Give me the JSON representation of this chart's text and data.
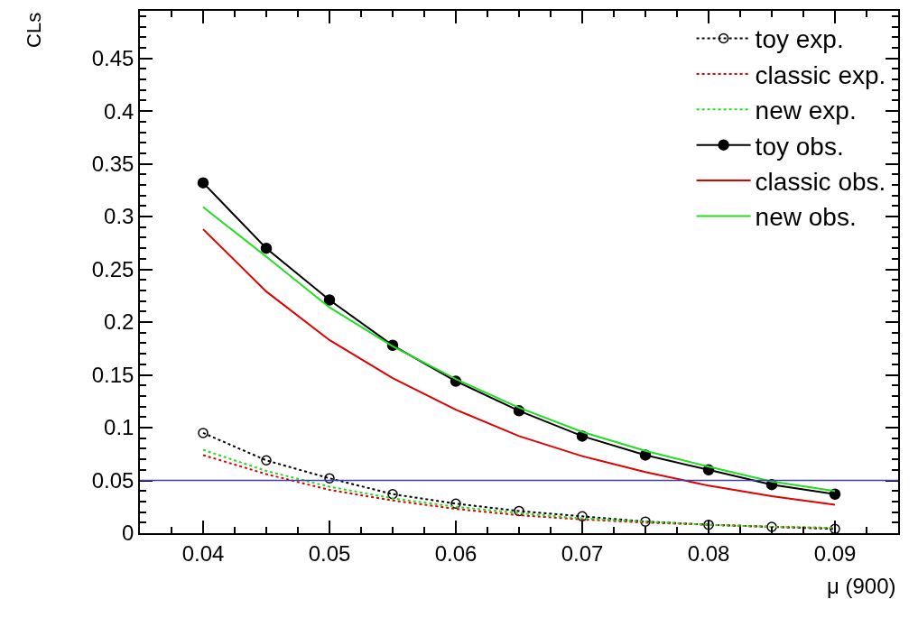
{
  "chart_data": {
    "type": "line",
    "xlabel": "μ (900)",
    "ylabel": "CLs",
    "x": [
      0.04,
      0.045,
      0.05,
      0.055,
      0.06,
      0.065,
      0.07,
      0.075,
      0.08,
      0.085,
      0.09
    ],
    "xlim": [
      0.035,
      0.095
    ],
    "xticks": [
      0.04,
      0.05,
      0.06,
      0.07,
      0.08,
      0.09
    ],
    "ylim": [
      0,
      0.495
    ],
    "yticks": [
      0,
      0.05,
      0.1,
      0.15,
      0.2,
      0.25,
      0.3,
      0.35,
      0.4,
      0.45
    ],
    "legend": "top right",
    "ref_lines": [
      {
        "axis": "y",
        "value": 0.05,
        "color": "#3f3fa6"
      }
    ],
    "series": [
      {
        "name": "toy exp.",
        "color": "#000000",
        "marker": "circle-open",
        "line_style": "dotted",
        "values": [
          0.095,
          0.069,
          0.052,
          0.037,
          0.028,
          0.021,
          0.016,
          0.011,
          0.008,
          0.006,
          0.004
        ]
      },
      {
        "name": "classic exp.",
        "color": "#e00000",
        "marker": "none",
        "line_style": "dotted",
        "values": [
          0.074,
          0.056,
          0.041,
          0.031,
          0.023,
          0.017,
          0.013,
          0.01,
          0.008,
          0.006,
          0.005
        ]
      },
      {
        "name": "new exp.",
        "color": "#22dd22",
        "marker": "none",
        "line_style": "dotted",
        "values": [
          0.079,
          0.059,
          0.044,
          0.033,
          0.025,
          0.019,
          0.014,
          0.011,
          0.008,
          0.006,
          0.005
        ]
      },
      {
        "name": "toy obs.",
        "color": "#000000",
        "marker": "circle",
        "line_style": "solid",
        "values": [
          0.332,
          0.27,
          0.221,
          0.178,
          0.144,
          0.116,
          0.092,
          0.074,
          0.06,
          0.046,
          0.037
        ]
      },
      {
        "name": "classic obs.",
        "color": "#e00000",
        "marker": "none",
        "line_style": "solid",
        "values": [
          0.288,
          0.229,
          0.183,
          0.147,
          0.117,
          0.092,
          0.073,
          0.058,
          0.045,
          0.035,
          0.027
        ]
      },
      {
        "name": "new obs.",
        "color": "#22dd22",
        "marker": "none",
        "line_style": "solid",
        "values": [
          0.309,
          0.262,
          0.214,
          0.177,
          0.146,
          0.119,
          0.096,
          0.078,
          0.063,
          0.049,
          0.04
        ]
      }
    ]
  }
}
